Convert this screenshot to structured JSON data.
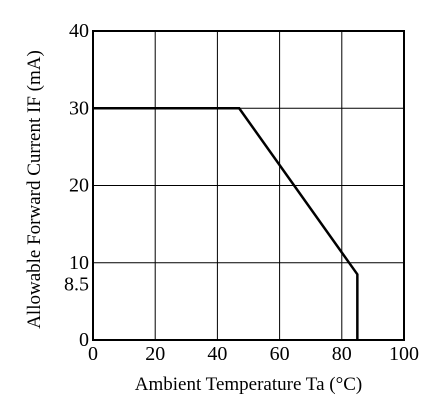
{
  "chart_data": {
    "type": "line",
    "title": "",
    "xlabel": "Ambient Temperature Ta (°C)",
    "ylabel": "Allowable Forward Current IF (mA)",
    "xlim": [
      0,
      100
    ],
    "ylim": [
      0,
      40
    ],
    "x_ticks": [
      0,
      20,
      40,
      60,
      80,
      100
    ],
    "y_ticks": [
      0,
      10,
      20,
      30,
      40
    ],
    "extra_y_ticks": [
      8.5
    ],
    "x_tick_labels": [
      "0",
      "20",
      "40",
      "60",
      "80",
      "100"
    ],
    "y_tick_labels": [
      "0",
      "10",
      "20",
      "30",
      "40"
    ],
    "extra_y_tick_labels": [
      "8.5"
    ],
    "grid": true,
    "series": [
      {
        "x": [
          0,
          47,
          85,
          85
        ],
        "y": [
          30,
          30,
          8.5,
          0
        ]
      }
    ]
  }
}
